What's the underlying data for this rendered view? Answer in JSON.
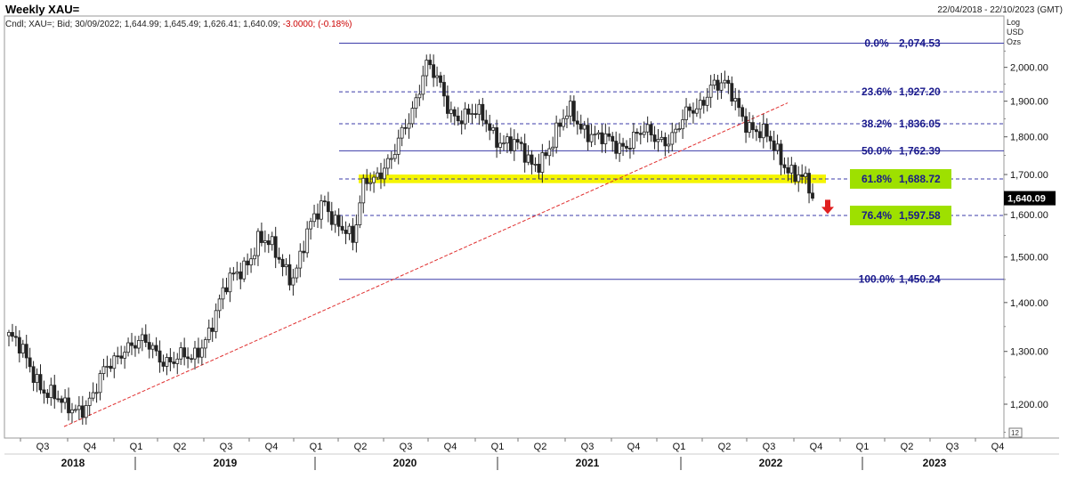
{
  "header": {
    "title": "Weekly XAU=",
    "date_range": "22/04/2018 - 22/10/2023 (GMT)",
    "ohlc_prefix": "Cndl; XAU=; Bid; 30/09/2022; 1,644.99; 1,645.49; 1,626.41; 1,640.09;",
    "ohlc_change": "-3.0000; (-0.18%)",
    "scale_type": "Log",
    "currency": "USD",
    "unit": "Ozs",
    "corner_label": "12"
  },
  "colors": {
    "fib_line": "#3b3ba8",
    "fib_label": "#1a1a8c",
    "highlight_band": "#f5f500",
    "highlight_label_bg": "#9ee000",
    "trendline": "#e03030",
    "arrow": "#e02020",
    "candle": "#222222",
    "last_price_bg": "#000000",
    "last_price_fg": "#ffffff"
  },
  "chart_data": {
    "type": "candlestick",
    "title": "Weekly XAU=",
    "scale": "log",
    "ylim": [
      1140,
      2110
    ],
    "yticks": [
      1200,
      1300,
      1400,
      1500,
      1600,
      1700,
      1800,
      1900,
      2000
    ],
    "ytick_labels": [
      "1,200.00",
      "1,300.00",
      "1,400.00",
      "1,500.00",
      "1,600.00",
      "1,700.00",
      "1,800.00",
      "1,900.00",
      "2,000.00"
    ],
    "last_price": 1640.09,
    "last_price_label": "1,640.09",
    "quarter_labels": [
      "Q3",
      "Q4",
      "Q1",
      "Q2",
      "Q3",
      "Q4",
      "Q1",
      "Q2",
      "Q3",
      "Q4",
      "Q1",
      "Q2",
      "Q3",
      "Q4",
      "Q1",
      "Q2",
      "Q3",
      "Q4",
      "Q1",
      "Q2",
      "Q3",
      "Q4"
    ],
    "year_labels": [
      "2018",
      "2019",
      "2020",
      "2021",
      "2022",
      "2023"
    ],
    "fibonacci": [
      {
        "pct": "0.0%",
        "value": 2074.53,
        "label": "2,074.53",
        "style": "solid",
        "highlight": false
      },
      {
        "pct": "23.6%",
        "value": 1927.2,
        "label": "1,927.20",
        "style": "dashed",
        "highlight": false
      },
      {
        "pct": "38.2%",
        "value": 1836.05,
        "label": "1,836.05",
        "style": "dashed",
        "highlight": false
      },
      {
        "pct": "50.0%",
        "value": 1762.39,
        "label": "1,762.39",
        "style": "solid",
        "highlight": false
      },
      {
        "pct": "61.8%",
        "value": 1688.72,
        "label": "1,688.72",
        "style": "dashed",
        "highlight": true
      },
      {
        "pct": "76.4%",
        "value": 1597.58,
        "label": "1,597.58",
        "style": "dashed",
        "highlight": true
      },
      {
        "pct": "100.0%",
        "value": 1450.24,
        "label": "1,450.24",
        "style": "solid",
        "highlight": false
      }
    ],
    "support_zone": {
      "low": 1678,
      "high": 1700
    },
    "trendline": {
      "from_value": 1160,
      "to_value": 1895
    },
    "anchors": [
      {
        "period": "2018 Q3",
        "close": 1330
      },
      {
        "period": "2018 Q3",
        "close": 1290
      },
      {
        "period": "2018 Q3",
        "close": 1185
      },
      {
        "period": "2018 Q4",
        "close": 1215
      },
      {
        "period": "2019 Q1",
        "close": 1320
      },
      {
        "period": "2019 Q2",
        "close": 1275
      },
      {
        "period": "2019 Q2",
        "close": 1410
      },
      {
        "period": "2019 Q3",
        "close": 1540
      },
      {
        "period": "2019 Q4",
        "close": 1465
      },
      {
        "period": "2020 Q1",
        "close": 1640
      },
      {
        "period": "2020 Q1",
        "close": 1520
      },
      {
        "period": "2020 Q2",
        "close": 1700
      },
      {
        "period": "2020 Q2",
        "close": 1720
      },
      {
        "period": "2020 Q3",
        "close": 1940
      },
      {
        "period": "2020 Q3",
        "close": 2010
      },
      {
        "period": "2020 Q4",
        "close": 1880
      },
      {
        "period": "2020 Q4",
        "close": 1860
      },
      {
        "period": "2021 Q1",
        "close": 1840
      },
      {
        "period": "2021 Q1",
        "close": 1730
      },
      {
        "period": "2021 Q2",
        "close": 1780
      },
      {
        "period": "2021 Q2",
        "close": 1880
      },
      {
        "period": "2021 Q3",
        "close": 1780
      },
      {
        "period": "2021 Q3",
        "close": 1790
      },
      {
        "period": "2021 Q4",
        "close": 1800
      },
      {
        "period": "2021 Q4",
        "close": 1810
      },
      {
        "period": "2022 Q1",
        "close": 1890
      },
      {
        "period": "2022 Q1",
        "close": 1960
      },
      {
        "period": "2022 Q2",
        "close": 1930
      },
      {
        "period": "2022 Q2",
        "close": 1850
      },
      {
        "period": "2022 Q3",
        "close": 1760
      },
      {
        "period": "2022 Q3",
        "close": 1710
      },
      {
        "period": "2022 Q3",
        "close": 1640
      }
    ]
  }
}
